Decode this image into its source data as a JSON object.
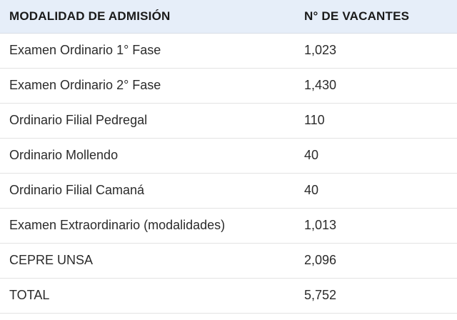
{
  "table": {
    "headers": [
      "MODALIDAD DE ADMISIÓN",
      "N° DE VACANTES"
    ],
    "rows": [
      [
        "Examen Ordinario 1° Fase",
        "1,023"
      ],
      [
        "Examen Ordinario 2° Fase",
        "1,430"
      ],
      [
        "Ordinario Filial Pedregal",
        "110"
      ],
      [
        "Ordinario Mollendo",
        "40"
      ],
      [
        "Ordinario Filial Camaná",
        "40"
      ],
      [
        "Examen Extraordinario (modalidades)",
        "1,013"
      ],
      [
        "CEPRE UNSA",
        "2,096"
      ],
      [
        "TOTAL",
        "5,752"
      ]
    ]
  },
  "colors": {
    "header_bg": "#e6eef9",
    "row_border": "#e3e3e3",
    "text": "#2b2b2b"
  }
}
